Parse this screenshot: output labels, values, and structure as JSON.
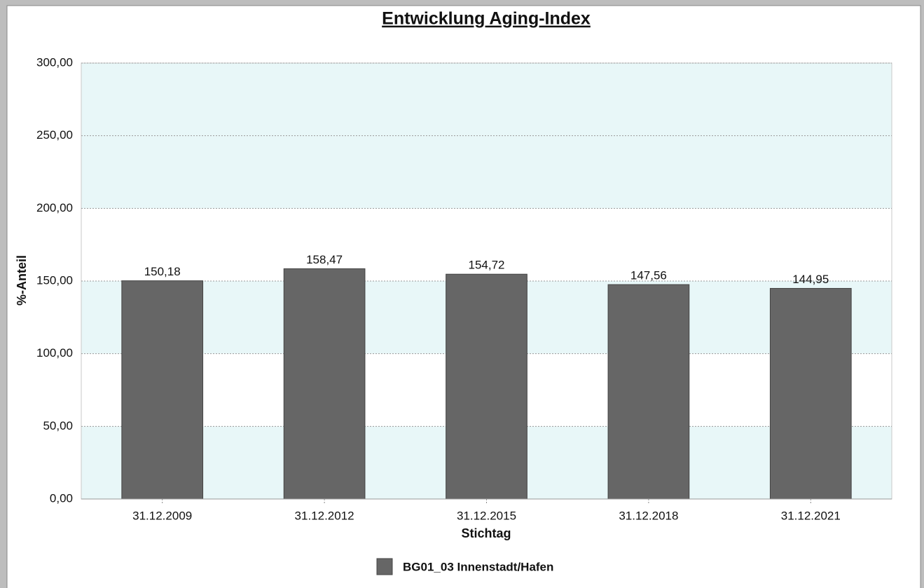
{
  "chart_data": {
    "type": "bar",
    "title": "Entwicklung Aging-Index",
    "x_label": "Stichtag",
    "y_label": "%-Anteil",
    "categories": [
      "31.12.2009",
      "31.12.2012",
      "31.12.2015",
      "31.12.2018",
      "31.12.2021"
    ],
    "series": [
      {
        "name": "BG01_03 Innenstadt/Hafen",
        "color": "#666666",
        "values": [
          150.18,
          158.47,
          154.72,
          147.56,
          144.95
        ],
        "value_labels": [
          "150,18",
          "158,47",
          "154,72",
          "147,56",
          "144,95"
        ]
      }
    ],
    "ylim": [
      0,
      300
    ],
    "yticks": [
      {
        "value": 0,
        "label": "0,00"
      },
      {
        "value": 50,
        "label": "50,00"
      },
      {
        "value": 100,
        "label": "100,00"
      },
      {
        "value": 150,
        "label": "150,00"
      },
      {
        "value": 200,
        "label": "200,00"
      },
      {
        "value": 250,
        "label": "250,00"
      },
      {
        "value": 300,
        "label": "300,00"
      }
    ],
    "grid": true,
    "band_color": "#e8f7f8",
    "legend": "bottom"
  }
}
